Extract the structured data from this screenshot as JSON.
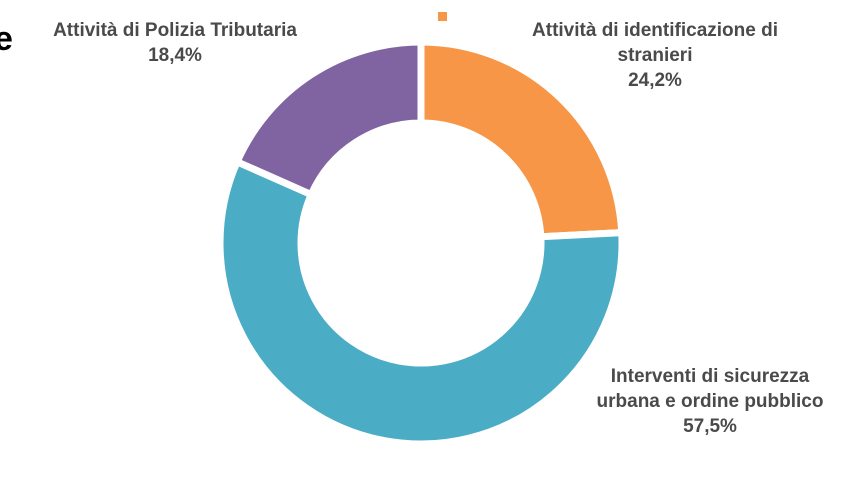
{
  "chart_data": {
    "type": "donut",
    "title": "e",
    "categories": [
      "Attività di identificazione di stranieri",
      "Interventi di sicurezza urbana e ordine pubblico",
      "Attività di Polizia Tributaria"
    ],
    "values": [
      24.2,
      57.5,
      18.4
    ],
    "value_labels": [
      "24,2%",
      "57,5%",
      "18,4%"
    ],
    "colors": [
      "#f79646",
      "#4bacc6",
      "#8064a2"
    ]
  }
}
